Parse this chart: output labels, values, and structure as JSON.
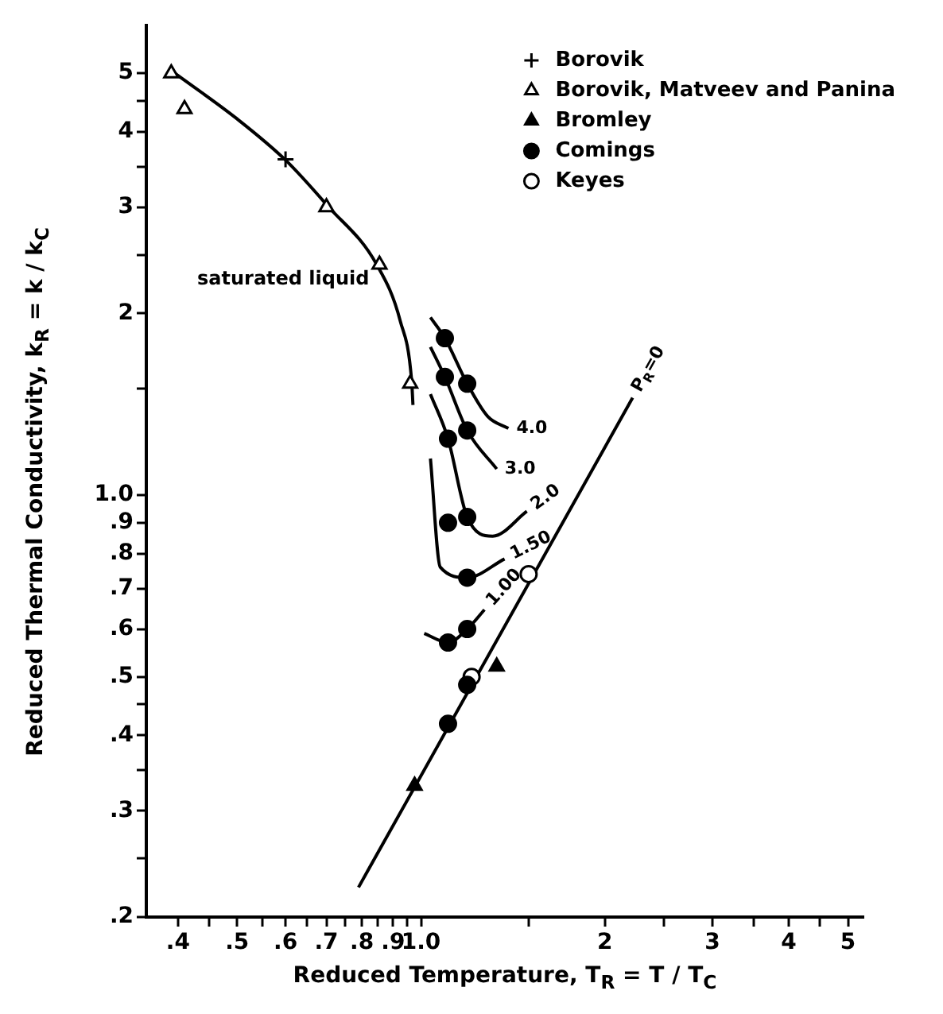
{
  "chart_data": {
    "type": "scatter",
    "xlabel": "Reduced Temperature, T$_{R}$ = T / T$_{C}$",
    "ylabel": "Reduced Thermal Conductivity, k$_{R}$ = k / k$_{C}$",
    "log": "xy",
    "grid": false,
    "legend": "top right",
    "xlim": [
      0.355,
      5.3
    ],
    "ylim": [
      0.2,
      6
    ],
    "xticks": [
      {
        "value": 0.4,
        "label": ".4"
      },
      {
        "value": 0.45,
        "label": null
      },
      {
        "value": 0.5,
        "label": ".5"
      },
      {
        "value": 0.55,
        "label": null
      },
      {
        "value": 0.6,
        "label": ".6"
      },
      {
        "value": 0.65,
        "label": null
      },
      {
        "value": 0.7,
        "label": ".7"
      },
      {
        "value": 0.75,
        "label": null
      },
      {
        "value": 0.8,
        "label": ".8"
      },
      {
        "value": 0.85,
        "label": null
      },
      {
        "value": 0.9,
        "label": ".9"
      },
      {
        "value": 0.95,
        "label": null
      },
      {
        "value": 1,
        "label": "1.0"
      },
      {
        "value": 1.5,
        "label": null
      },
      2,
      {
        "value": 2.5,
        "label": null
      },
      3,
      {
        "value": 3.5,
        "label": null
      },
      4,
      {
        "value": 4.5,
        "label": null
      },
      5
    ],
    "yticks": [
      {
        "value": 0.2,
        "label": ".2"
      },
      {
        "value": 0.25,
        "label": null
      },
      {
        "value": 0.3,
        "label": ".3"
      },
      {
        "value": 0.35,
        "label": null
      },
      {
        "value": 0.4,
        "label": ".4"
      },
      {
        "value": 0.45,
        "label": null
      },
      {
        "value": 0.5,
        "label": ".5"
      },
      {
        "value": 0.6,
        "label": ".6"
      },
      {
        "value": 0.7,
        "label": ".7"
      },
      {
        "value": 0.8,
        "label": ".8"
      },
      {
        "value": 0.9,
        "label": ".9"
      },
      {
        "value": 1,
        "label": "1.0"
      },
      {
        "value": 1.5,
        "label": null
      },
      2,
      {
        "value": 2.5,
        "label": null
      },
      3,
      {
        "value": 3.5,
        "label": null
      },
      4,
      {
        "value": 4.5,
        "label": null
      },
      5
    ],
    "series": [
      {
        "name": "Borovik",
        "marker": "cross",
        "color": "#000000",
        "x": [
          0.6
        ],
        "values": [
          3.6
        ]
      },
      {
        "name": "Borovik, Matveev and Panina",
        "marker": "triangle",
        "color": "#ffffff",
        "x": [
          0.39,
          0.41,
          0.7,
          0.855,
          0.96
        ],
        "values": [
          5.0,
          4.36,
          3.0,
          2.41,
          1.53
        ]
      },
      {
        "name": "Bromley",
        "marker": "triangle",
        "color": "#000000",
        "x": [
          0.976,
          1.33
        ],
        "values": [
          0.33,
          0.52
        ]
      },
      {
        "name": "Comings",
        "marker": "circle",
        "color": "#000000",
        "x": [
          1.094,
          1.094,
          1.19,
          1.19,
          1.107,
          1.107,
          1.19,
          1.19,
          1.19,
          1.107,
          1.19,
          1.107
        ],
        "values": [
          1.82,
          1.57,
          1.53,
          1.28,
          1.24,
          0.9,
          0.92,
          0.73,
          0.6,
          0.57,
          0.485,
          0.418
        ]
      },
      {
        "name": "Keyes",
        "marker": "circle",
        "color": "#ffffff",
        "x": [
          1.5,
          1.21
        ],
        "values": [
          0.74,
          0.5
        ]
      },
      {
        "type": "line",
        "marker": "none",
        "color": "#000000",
        "x": [
          0.392,
          0.5,
          0.6,
          0.702,
          0.846,
          0.925,
          0.965,
          0.97
        ],
        "values": [
          5.03,
          4.2,
          3.59,
          3.02,
          2.41,
          1.94,
          1.55,
          1.41
        ]
      },
      {
        "name": "4.0",
        "type": "line",
        "marker": "none",
        "color": "#000000",
        "x": [
          1.036,
          1.094,
          1.19,
          1.286,
          1.39
        ],
        "values": [
          1.97,
          1.82,
          1.53,
          1.35,
          1.29
        ]
      },
      {
        "name": "3.0",
        "type": "line",
        "marker": "none",
        "color": "#000000",
        "x": [
          1.036,
          1.094,
          1.19,
          1.33
        ],
        "values": [
          1.76,
          1.57,
          1.28,
          1.105
        ]
      },
      {
        "name": "2.0",
        "type": "line",
        "marker": "none",
        "color": "#000000",
        "x": [
          1.036,
          1.107,
          1.19,
          1.31,
          1.49
        ],
        "values": [
          1.47,
          1.24,
          0.92,
          0.855,
          0.94
        ]
      },
      {
        "name": "1.50",
        "type": "line",
        "marker": "none",
        "color": "#000000",
        "x": [
          1.036,
          1.075,
          1.19,
          1.37
        ],
        "values": [
          1.15,
          0.76,
          0.73,
          0.784
        ]
      },
      {
        "name": "1.00",
        "type": "line",
        "marker": "none",
        "color": "#000000",
        "x": [
          1.012,
          1.107,
          1.19,
          1.27
        ],
        "values": [
          0.59,
          0.57,
          0.6,
          0.646
        ]
      },
      {
        "name": "P$_{R}$=0",
        "type": "line",
        "marker": "none",
        "color": "#000000",
        "x": [
          0.79,
          2.22
        ],
        "values": [
          0.224,
          1.45
        ]
      }
    ],
    "annotations": [
      "saturated liquid"
    ]
  }
}
